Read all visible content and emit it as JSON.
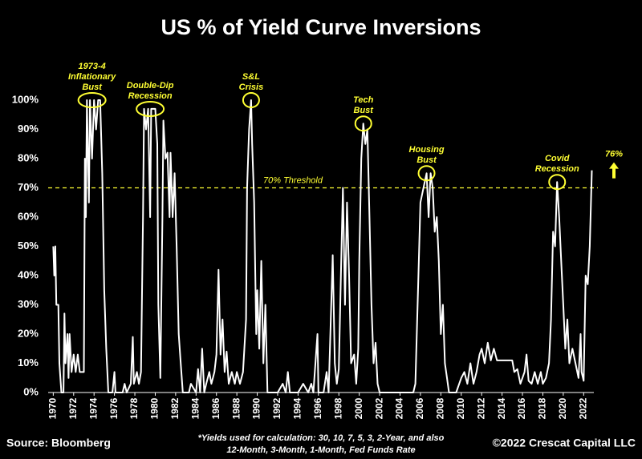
{
  "chart_data": {
    "type": "line",
    "title": "US % of Yield Curve Inversions",
    "x": [
      1970.0,
      1970.1,
      1970.2,
      1970.3,
      1970.5,
      1970.6,
      1970.8,
      1971.0,
      1971.1,
      1971.2,
      1971.4,
      1971.5,
      1971.6,
      1971.8,
      1972.0,
      1972.2,
      1972.4,
      1972.6,
      1973.0,
      1973.1,
      1973.2,
      1973.3,
      1973.5,
      1973.6,
      1973.8,
      1974.0,
      1974.2,
      1974.4,
      1974.6,
      1974.8,
      1975.0,
      1975.2,
      1975.4,
      1975.8,
      1976.0,
      1976.1,
      1976.8,
      1977.0,
      1977.2,
      1977.6,
      1977.8,
      1977.9,
      1978.2,
      1978.4,
      1978.6,
      1978.8,
      1978.9,
      1979.1,
      1979.3,
      1979.5,
      1979.6,
      1979.8,
      1980.0,
      1980.2,
      1980.3,
      1980.5,
      1980.7,
      1980.8,
      1981.0,
      1981.2,
      1981.4,
      1981.5,
      1981.7,
      1981.9,
      1982.1,
      1982.3,
      1982.5,
      1982.7,
      1983.0,
      1983.3,
      1983.5,
      1984.0,
      1984.2,
      1984.4,
      1984.6,
      1984.8,
      1985.0,
      1985.3,
      1985.5,
      1985.8,
      1986.0,
      1986.2,
      1986.4,
      1986.6,
      1986.8,
      1987.0,
      1987.2,
      1987.5,
      1987.8,
      1988.0,
      1988.3,
      1988.6,
      1988.9,
      1989.0,
      1989.2,
      1989.4,
      1989.5,
      1989.7,
      1989.9,
      1990.0,
      1990.2,
      1990.4,
      1990.6,
      1990.8,
      1991.0,
      1991.5,
      1992.0,
      1992.5,
      1992.8,
      1993.0,
      1993.2,
      1994.0,
      1994.5,
      1995.0,
      1995.3,
      1995.5,
      1995.9,
      1996.0,
      1996.5,
      1996.8,
      1997.0,
      1997.4,
      1997.6,
      1997.8,
      1998.0,
      1998.2,
      1998.4,
      1998.6,
      1998.8,
      1999.0,
      1999.2,
      1999.5,
      1999.7,
      1999.9,
      2000.0,
      2000.2,
      2000.4,
      2000.6,
      2000.8,
      2001.0,
      2001.2,
      2001.4,
      2001.6,
      2001.8,
      2002.0,
      2003.0,
      2004.0,
      2005.0,
      2005.3,
      2005.5,
      2005.8,
      2006.0,
      2006.3,
      2006.6,
      2006.8,
      2007.0,
      2007.2,
      2007.4,
      2007.6,
      2007.8,
      2008.0,
      2008.2,
      2008.4,
      2008.6,
      2008.8,
      2009.5,
      2010.0,
      2010.3,
      2010.6,
      2010.9,
      2011.2,
      2011.5,
      2011.8,
      2012.0,
      2012.3,
      2012.6,
      2012.9,
      2013.2,
      2013.5,
      2014.0,
      2014.5,
      2015.0,
      2015.2,
      2015.5,
      2015.8,
      2016.2,
      2016.4,
      2016.6,
      2016.9,
      2017.2,
      2017.5,
      2017.8,
      2018.0,
      2018.3,
      2018.6,
      2018.8,
      2019.0,
      2019.2,
      2019.4,
      2019.6,
      2019.8,
      2020.0,
      2020.2,
      2020.4,
      2020.6,
      2020.9,
      2021.2,
      2021.5,
      2021.7,
      2021.8,
      2022.0,
      2022.2,
      2022.4,
      2022.6,
      2022.8
    ],
    "series": [
      {
        "color": "#ffffff",
        "values": [
          50,
          40,
          50,
          30,
          30,
          10,
          0,
          0,
          27,
          10,
          20,
          5,
          20,
          7,
          13,
          7,
          13,
          7,
          7,
          80,
          60,
          100,
          65,
          100,
          80,
          100,
          90,
          100,
          100,
          75,
          35,
          15,
          0,
          0,
          7,
          0,
          0,
          3,
          0,
          3,
          19,
          3,
          7,
          3,
          7,
          60,
          97,
          90,
          97,
          60,
          97,
          97,
          97,
          85,
          30,
          5,
          60,
          93,
          80,
          82,
          60,
          82,
          60,
          75,
          50,
          20,
          10,
          0,
          0,
          0,
          3,
          0,
          8,
          0,
          15,
          0,
          3,
          7,
          3,
          7,
          13,
          42,
          13,
          25,
          7,
          14,
          3,
          7,
          3,
          7,
          3,
          7,
          25,
          70,
          90,
          100,
          85,
          65,
          20,
          35,
          15,
          45,
          10,
          30,
          0,
          0,
          0,
          3,
          0,
          7,
          0,
          0,
          3,
          0,
          3,
          0,
          20,
          0,
          0,
          7,
          0,
          47,
          10,
          3,
          8,
          40,
          70,
          30,
          65,
          40,
          10,
          13,
          3,
          15,
          45,
          80,
          92,
          85,
          90,
          60,
          30,
          10,
          17,
          3,
          0,
          0,
          0,
          0,
          0,
          3,
          40,
          65,
          70,
          75,
          60,
          75,
          70,
          55,
          60,
          45,
          20,
          30,
          10,
          5,
          0,
          0,
          5,
          7,
          3,
          10,
          3,
          7,
          13,
          15,
          10,
          17,
          11,
          15,
          11,
          11,
          11,
          11,
          7,
          8,
          3,
          7,
          13,
          4,
          3,
          7,
          3,
          7,
          3,
          5,
          10,
          25,
          55,
          50,
          72,
          60,
          45,
          30,
          15,
          25,
          10,
          15,
          10,
          5,
          20,
          7,
          4,
          40,
          37,
          50,
          76
        ]
      }
    ],
    "xlim": [
      1969.5,
      2023
    ],
    "ylim": [
      0,
      100
    ],
    "xticks": [
      1970,
      1972,
      1974,
      1976,
      1978,
      1980,
      1982,
      1984,
      1986,
      1988,
      1990,
      1992,
      1994,
      1996,
      1998,
      2000,
      2002,
      2004,
      2006,
      2008,
      2010,
      2012,
      2014,
      2016,
      2018,
      2020,
      2022
    ],
    "yticks": [
      {
        "value": 0,
        "label": "0%"
      },
      {
        "value": 10,
        "label": "10%"
      },
      {
        "value": 20,
        "label": "20%"
      },
      {
        "value": 30,
        "label": "30%"
      },
      {
        "value": 40,
        "label": "40%"
      },
      {
        "value": 50,
        "label": "50%"
      },
      {
        "value": 60,
        "label": "60%"
      },
      {
        "value": 70,
        "label": "70%"
      },
      {
        "value": 80,
        "label": "80%"
      },
      {
        "value": 90,
        "label": "90%"
      },
      {
        "value": 100,
        "label": "100%"
      }
    ],
    "threshold": {
      "value": 70,
      "label": "70% Threshold",
      "color": "#ffff33"
    },
    "callout": {
      "value": 76,
      "label": "76%"
    },
    "annotations": [
      {
        "lines": [
          "1973-4",
          "Inflationary",
          "Bust"
        ],
        "x": 1973.8,
        "y": 100
      },
      {
        "lines": [
          "Double-Dip",
          "Recession"
        ],
        "x": 1979.5,
        "y": 97
      },
      {
        "lines": [
          "S&L",
          "Crisis"
        ],
        "x": 1989.4,
        "y": 100
      },
      {
        "lines": [
          "Tech",
          "Bust"
        ],
        "x": 2000.4,
        "y": 92
      },
      {
        "lines": [
          "Housing",
          "Bust"
        ],
        "x": 2006.6,
        "y": 75
      },
      {
        "lines": [
          "Covid",
          "Recession"
        ],
        "x": 2019.4,
        "y": 72
      }
    ],
    "source": "Source: Bloomberg",
    "footnote": [
      "*Yields used for calculation: 30, 10, 7, 5, 3, 2-Year, and also",
      "12-Month, 3-Month, 1-Month, Fed Funds Rate"
    ],
    "copyright": "©2022 Crescat Capital LLC"
  }
}
